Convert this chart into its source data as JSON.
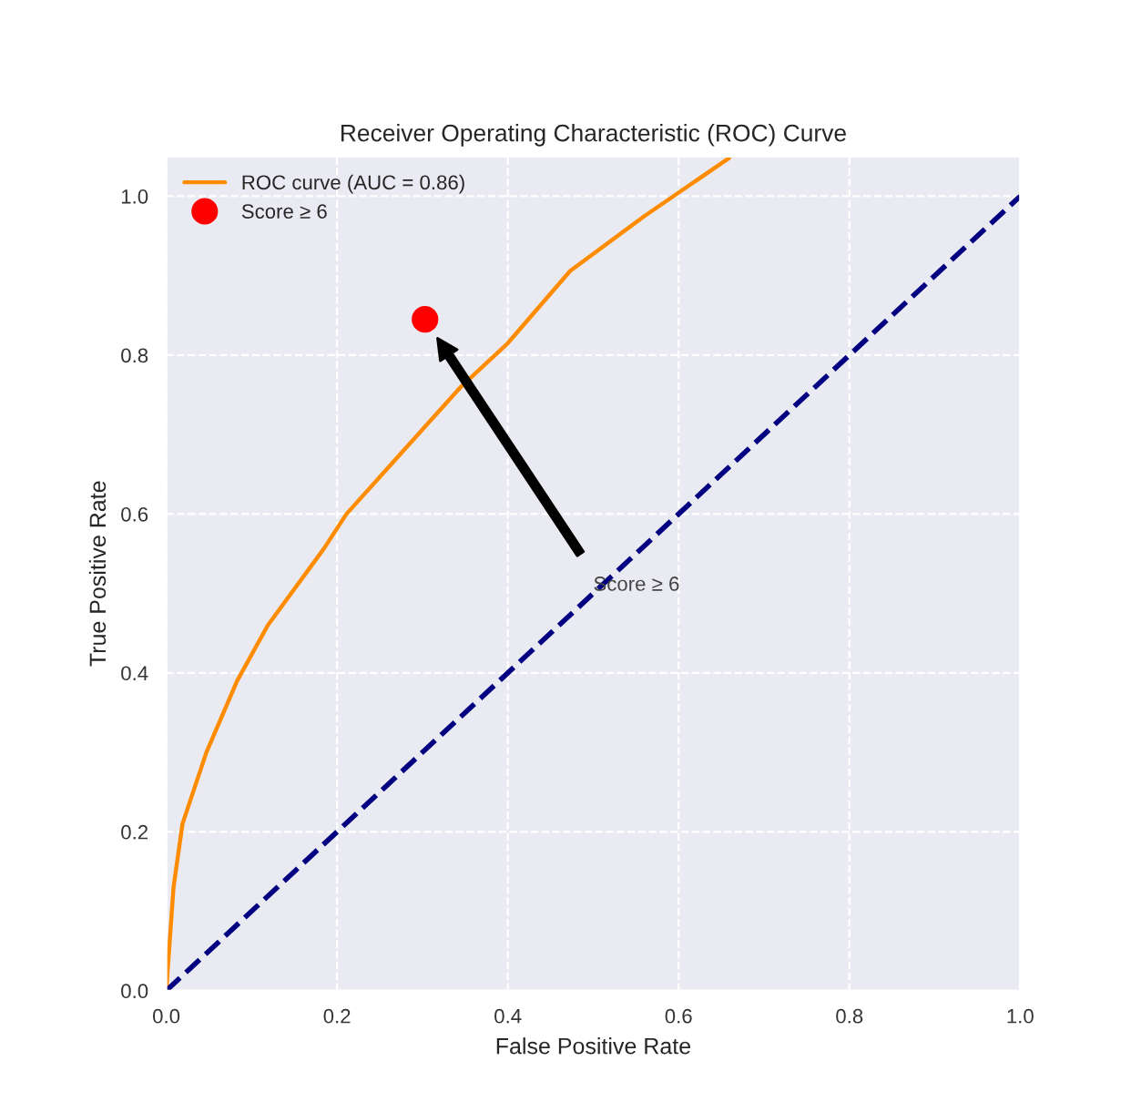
{
  "chart_data": {
    "type": "line",
    "title": "Receiver Operating Characteristic (ROC) Curve",
    "xlabel": "False Positive Rate",
    "ylabel": "True Positive Rate",
    "series": [
      {
        "name": "ROC curve (AUC = 0.86)",
        "color": "#ff8c00",
        "line_style": "solid",
        "x": [
          0,
          0.0085,
          0.019,
          0.047,
          0.083,
          0.119,
          0.185,
          0.211,
          0.345,
          0.4,
          0.473,
          0.56,
          0.659
        ],
        "values": [
          0,
          0.13,
          0.21,
          0.3,
          0.39,
          0.46,
          0.557,
          0.6,
          0.76,
          0.815,
          0.906,
          0.975,
          1.048
        ]
      },
      {
        "color": "#000080",
        "line_style": "dashed",
        "x": [
          0,
          1
        ],
        "values": [
          0,
          1
        ]
      },
      {
        "name": "Score ≥ 6",
        "type": "scatter",
        "color": "#ff0000",
        "marker": "circle",
        "x": [
          0.303
        ],
        "values": [
          0.845
        ]
      }
    ],
    "annotations": [
      {
        "text": "Score ≥ 6",
        "x": 0.5,
        "y": 0.51
      }
    ],
    "xlim": [
      0,
      1
    ],
    "ylim": [
      0,
      1.05
    ],
    "xticks": [
      {
        "value": 0,
        "label": "0.0"
      },
      0.2,
      0.4,
      0.6,
      0.8,
      {
        "value": 1,
        "label": "1.0"
      }
    ],
    "yticks": [
      {
        "value": 0,
        "label": "0.0"
      },
      0.2,
      0.4,
      0.6,
      0.8,
      {
        "value": 1,
        "label": "1.0"
      }
    ],
    "grid": true,
    "legend": "top left"
  }
}
